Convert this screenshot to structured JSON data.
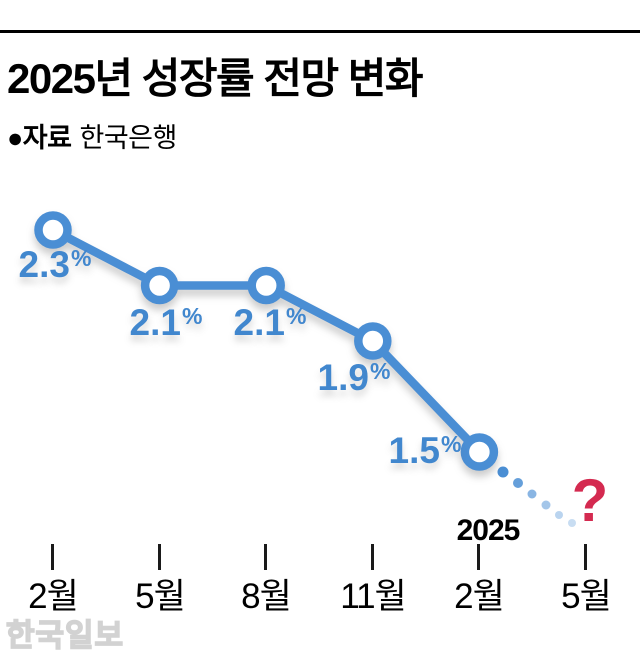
{
  "header": {
    "title": "2025년 성장률 전망 변화",
    "source_bullet_label": "●자료",
    "source_value": "한국은행"
  },
  "chart_data": {
    "type": "line",
    "title": "2025년 성장률 전망 변화",
    "source": "한국은행",
    "unit": "%",
    "x_tick_labels": [
      "2월",
      "5월",
      "8월",
      "11월",
      "2월",
      "5월"
    ],
    "year_annotation": "2025",
    "points": [
      {
        "month": "2월",
        "value": 2.3,
        "display": "2.3"
      },
      {
        "month": "5월",
        "value": 2.1,
        "display": "2.1"
      },
      {
        "month": "8월",
        "value": 2.1,
        "display": "2.1"
      },
      {
        "month": "11월",
        "value": 1.9,
        "display": "1.9"
      },
      {
        "month": "2월",
        "value": 1.5,
        "display": "1.5"
      }
    ],
    "forecast_point": {
      "month": "5월",
      "value": null,
      "display": "?"
    },
    "ylim": [
      1.3,
      2.5
    ],
    "grid": false,
    "legend": "none"
  },
  "colors": {
    "line_blue": "#4A8ED4",
    "label_blue": "#4187CE",
    "question_red": "#D42A50",
    "axis_black": "#1A1A1A",
    "watermark_gray": "#D2D2D2"
  },
  "watermark": "한국일보"
}
